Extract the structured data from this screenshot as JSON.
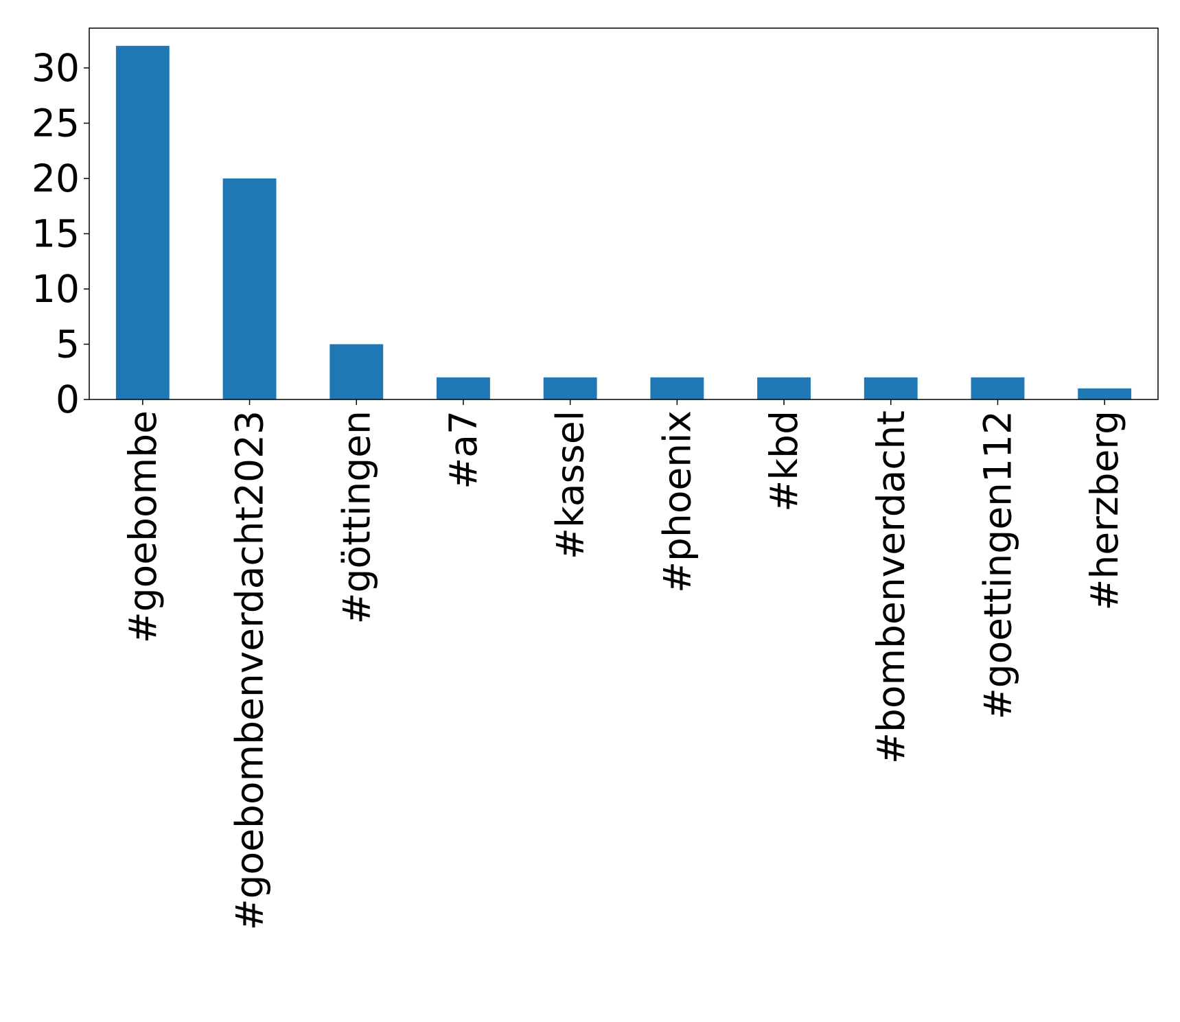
{
  "chart_data": {
    "type": "bar",
    "categories": [
      "#goebombe",
      "#goebombenverdacht2023",
      "#göttingen",
      "#a7",
      "#kassel",
      "#phoenix",
      "#kbd",
      "#bombenverdacht",
      "#goettingen112",
      "#herzberg"
    ],
    "values": [
      32,
      20,
      5,
      2,
      2,
      2,
      2,
      2,
      2,
      1
    ],
    "color": "#1f77b4",
    "ylim": [
      0,
      33.6
    ],
    "yticks": [
      0,
      5,
      10,
      15,
      20,
      25,
      30
    ],
    "grid": false
  }
}
